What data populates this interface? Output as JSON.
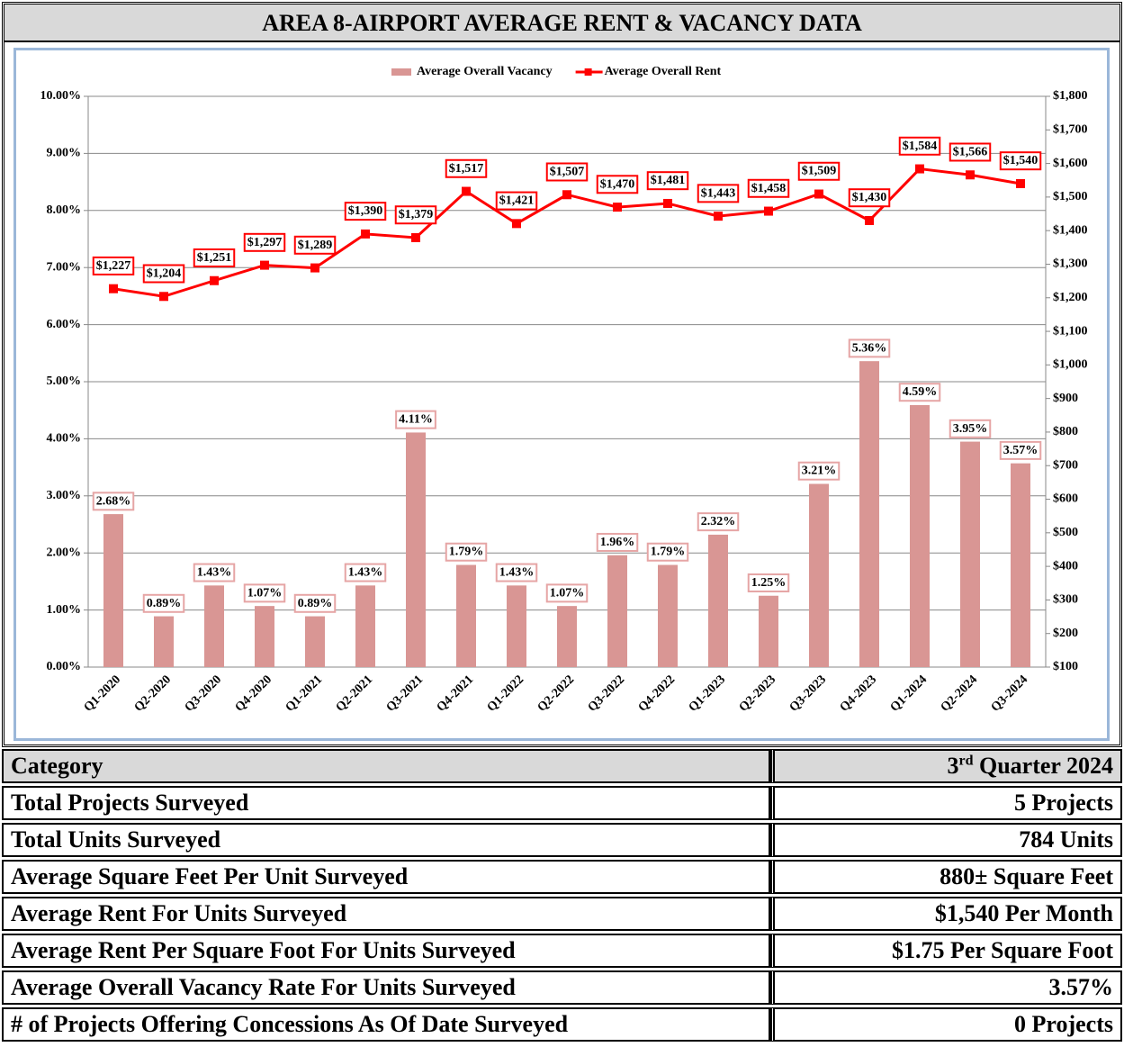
{
  "header": {
    "title": "AREA 8-AIRPORT AVERAGE RENT & VACANCY DATA"
  },
  "chart_data": {
    "type": "combo",
    "categories": [
      "Q1-2020",
      "Q2-2020",
      "Q3-2020",
      "Q4-2020",
      "Q1-2021",
      "Q2-2021",
      "Q3-2021",
      "Q4-2021",
      "Q1-2022",
      "Q2-2022",
      "Q3-2022",
      "Q4-2022",
      "Q1-2023",
      "Q2-2023",
      "Q3-2023",
      "Q4-2023",
      "Q1-2024",
      "Q2-2024",
      "Q3-2024"
    ],
    "series": [
      {
        "name": "Average Overall Vacancy",
        "color": "#d99694",
        "kind": "bar",
        "axis": "y",
        "values": [
          2.68,
          0.89,
          1.43,
          1.07,
          0.89,
          1.43,
          4.11,
          1.79,
          1.43,
          1.07,
          1.96,
          1.79,
          2.32,
          1.25,
          3.21,
          5.36,
          4.59,
          3.95,
          3.57
        ],
        "value_labels": [
          "2.68%",
          "0.89%",
          "1.43%",
          "1.07%",
          "0.89%",
          "1.43%",
          "4.11%",
          "1.79%",
          "1.43%",
          "1.07%",
          "1.96%",
          "1.79%",
          "2.32%",
          "1.25%",
          "3.21%",
          "5.36%",
          "4.59%",
          "3.95%",
          "3.57%"
        ]
      },
      {
        "name": "Average Overall Rent",
        "color": "#ff0000",
        "kind": "line",
        "axis": "y2",
        "values": [
          1227,
          1204,
          1251,
          1297,
          1289,
          1390,
          1379,
          1517,
          1421,
          1507,
          1470,
          1481,
          1443,
          1458,
          1509,
          1430,
          1584,
          1566,
          1540
        ],
        "value_labels": [
          "$1,227",
          "$1,204",
          "$1,251",
          "$1,297",
          "$1,289",
          "$1,390",
          "$1,379",
          "$1,517",
          "$1,421",
          "$1,507",
          "$1,470",
          "$1,481",
          "$1,443",
          "$1,458",
          "$1,509",
          "$1,430",
          "$1,584",
          "$1,566",
          "$1,540"
        ]
      }
    ],
    "ylim": [
      0,
      10
    ],
    "yticks": [
      {
        "value": 0,
        "label": "0.00%"
      },
      {
        "value": 1,
        "label": "1.00%"
      },
      {
        "value": 2,
        "label": "2.00%"
      },
      {
        "value": 3,
        "label": "3.00%"
      },
      {
        "value": 4,
        "label": "4.00%"
      },
      {
        "value": 5,
        "label": "5.00%"
      },
      {
        "value": 6,
        "label": "6.00%"
      },
      {
        "value": 7,
        "label": "7.00%"
      },
      {
        "value": 8,
        "label": "8.00%"
      },
      {
        "value": 9,
        "label": "9.00%"
      },
      {
        "value": 10,
        "label": "10.00%"
      }
    ],
    "y2lim": [
      100,
      1800
    ],
    "y2ticks": [
      {
        "value": 100,
        "label": "$100"
      },
      {
        "value": 200,
        "label": "$200"
      },
      {
        "value": 300,
        "label": "$300"
      },
      {
        "value": 400,
        "label": "$400"
      },
      {
        "value": 500,
        "label": "$500"
      },
      {
        "value": 600,
        "label": "$600"
      },
      {
        "value": 700,
        "label": "$700"
      },
      {
        "value": 800,
        "label": "$800"
      },
      {
        "value": 900,
        "label": "$900"
      },
      {
        "value": 1000,
        "label": "$1,000"
      },
      {
        "value": 1100,
        "label": "$1,100"
      },
      {
        "value": 1200,
        "label": "$1,200"
      },
      {
        "value": 1300,
        "label": "$1,300"
      },
      {
        "value": 1400,
        "label": "$1,400"
      },
      {
        "value": 1500,
        "label": "$1,500"
      },
      {
        "value": 1600,
        "label": "$1,600"
      },
      {
        "value": 1700,
        "label": "$1,700"
      },
      {
        "value": 1800,
        "label": "$1,800"
      }
    ],
    "grid": true,
    "legend": "top"
  },
  "table": {
    "header": [
      "Category",
      [
        "3",
        "rd",
        " Quarter 2024"
      ]
    ],
    "rows": [
      [
        "Total Projects Surveyed",
        "5 Projects"
      ],
      [
        "Total Units Surveyed",
        "784 Units"
      ],
      [
        "Average Square Feet Per Unit Surveyed",
        "880± Square Feet"
      ],
      [
        "Average Rent For Units Surveyed",
        "$1,540 Per Month"
      ],
      [
        "Average Rent Per Square Foot For Units Surveyed",
        "$1.75 Per Square Foot"
      ],
      [
        "Average Overall Vacancy Rate For Units Surveyed",
        "3.57%"
      ],
      [
        "# of Projects Offering Concessions As Of Date Surveyed",
        "0 Projects"
      ]
    ]
  }
}
